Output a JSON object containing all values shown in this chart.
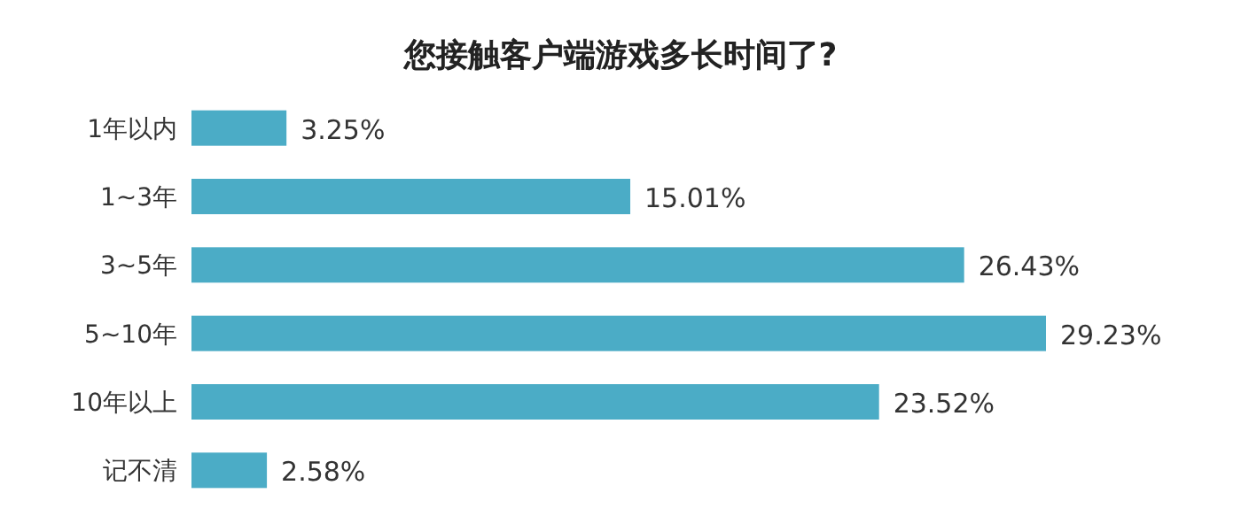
{
  "chart_data": {
    "type": "bar",
    "orientation": "horizontal",
    "title": "您接触客户端游戏多长时间了?",
    "categories": [
      "1年以内",
      "1~3年",
      "3~5年",
      "5~10年",
      "10年以上",
      "记不清"
    ],
    "values": [
      3.25,
      15.01,
      26.43,
      29.23,
      23.52,
      2.58
    ],
    "value_labels": [
      "3.25%",
      "15.01%",
      "26.43%",
      "29.23%",
      "23.52%",
      "2.58%"
    ],
    "color": "#4bacc6"
  }
}
